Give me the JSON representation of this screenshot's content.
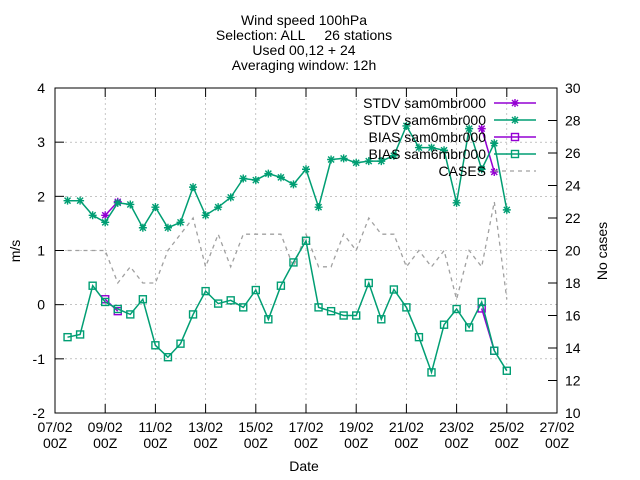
{
  "chart_data": {
    "type": "line",
    "title_lines": [
      "Wind speed 100hPa",
      "Selection: ALL     26 stations",
      "Used 00,12 + 24",
      "Averaging window: 12h"
    ],
    "xlabel": "Date",
    "ylabel": "m/s",
    "y2label": "No cases",
    "xlim": [
      0,
      20
    ],
    "ylim": [
      -2,
      4
    ],
    "y2lim": [
      10,
      30
    ],
    "x_ticks": [
      {
        "x": 0,
        "line1": "07/02",
        "line2": "00Z"
      },
      {
        "x": 2,
        "line1": "09/02",
        "line2": "00Z"
      },
      {
        "x": 4,
        "line1": "11/02",
        "line2": "00Z"
      },
      {
        "x": 6,
        "line1": "13/02",
        "line2": "00Z"
      },
      {
        "x": 8,
        "line1": "15/02",
        "line2": "00Z"
      },
      {
        "x": 10,
        "line1": "17/02",
        "line2": "00Z"
      },
      {
        "x": 12,
        "line1": "19/02",
        "line2": "00Z"
      },
      {
        "x": 14,
        "line1": "21/02",
        "line2": "00Z"
      },
      {
        "x": 16,
        "line1": "23/02",
        "line2": "00Z"
      },
      {
        "x": 18,
        "line1": "25/02",
        "line2": "00Z"
      },
      {
        "x": 20,
        "line1": "27/02",
        "line2": "00Z"
      }
    ],
    "y_ticks": [
      "-2",
      "-1",
      "0",
      "1",
      "2",
      "3",
      "4"
    ],
    "y2_ticks": [
      "10",
      "12",
      "14",
      "16",
      "18",
      "20",
      "22",
      "24",
      "26",
      "28",
      "30"
    ],
    "x": [
      0.5,
      1,
      1.5,
      2,
      2.5,
      3,
      3.5,
      4,
      4.5,
      5,
      5.5,
      6,
      6.5,
      7,
      7.5,
      8,
      8.5,
      9,
      9.5,
      10,
      10.5,
      11,
      11.5,
      12,
      12.5,
      13,
      13.5,
      14,
      14.5,
      15,
      15.5,
      16,
      16.5,
      17,
      17.5,
      18,
      18.5
    ],
    "series": [
      {
        "name": "STDV sam0mbr000",
        "color": "#9400d3",
        "marker": "star",
        "axis": "y",
        "values": [
          null,
          null,
          null,
          1.65,
          1.9,
          null,
          null,
          null,
          null,
          null,
          null,
          null,
          null,
          null,
          null,
          null,
          null,
          null,
          null,
          null,
          null,
          null,
          null,
          null,
          null,
          null,
          null,
          null,
          null,
          null,
          null,
          null,
          null,
          3.25,
          2.45,
          null,
          null
        ]
      },
      {
        "name": "STDV sam6mbr000",
        "color": "#009e73",
        "marker": "star",
        "axis": "y",
        "values": [
          1.92,
          1.92,
          1.65,
          1.52,
          1.88,
          1.85,
          1.42,
          1.8,
          1.42,
          1.52,
          2.17,
          1.65,
          1.8,
          1.98,
          2.33,
          2.3,
          2.42,
          2.35,
          2.22,
          2.5,
          1.8,
          2.68,
          2.7,
          2.62,
          2.65,
          2.65,
          2.75,
          3.3,
          2.9,
          2.9,
          2.85,
          1.88,
          3.25,
          2.5,
          2.98,
          1.75,
          null
        ]
      },
      {
        "name": "BIAS sam0mbr000",
        "color": "#9400d3",
        "marker": "square",
        "axis": "y",
        "values": [
          null,
          null,
          null,
          0.1,
          -0.12,
          null,
          null,
          null,
          null,
          null,
          null,
          null,
          null,
          null,
          null,
          null,
          null,
          null,
          null,
          null,
          null,
          null,
          null,
          null,
          null,
          null,
          null,
          null,
          null,
          null,
          null,
          null,
          null,
          -0.07,
          -0.85,
          null,
          null
        ]
      },
      {
        "name": "BIAS sam6mbr000",
        "color": "#009e73",
        "marker": "square",
        "axis": "y",
        "values": [
          -0.6,
          -0.55,
          0.35,
          0.05,
          -0.08,
          -0.18,
          0.1,
          -0.75,
          -0.97,
          -0.72,
          -0.18,
          0.25,
          0.02,
          0.08,
          -0.05,
          0.27,
          -0.27,
          0.35,
          0.78,
          1.18,
          -0.05,
          -0.12,
          -0.2,
          -0.2,
          0.4,
          -0.27,
          0.28,
          -0.05,
          -0.6,
          -1.25,
          -0.37,
          -0.08,
          -0.42,
          0.05,
          -0.85,
          -1.22,
          null
        ]
      },
      {
        "name": "CASES",
        "color": "#a0a0a0",
        "marker": "none",
        "dashed": true,
        "axis": "y2",
        "values": [
          20,
          20,
          20,
          20,
          18,
          19,
          18,
          18,
          20,
          21,
          22,
          19,
          21,
          19,
          21,
          21,
          21,
          21,
          19,
          21,
          19,
          19,
          21,
          20,
          22,
          21,
          21,
          19,
          20,
          19,
          20,
          17,
          20,
          19,
          23,
          17,
          null
        ]
      }
    ]
  }
}
